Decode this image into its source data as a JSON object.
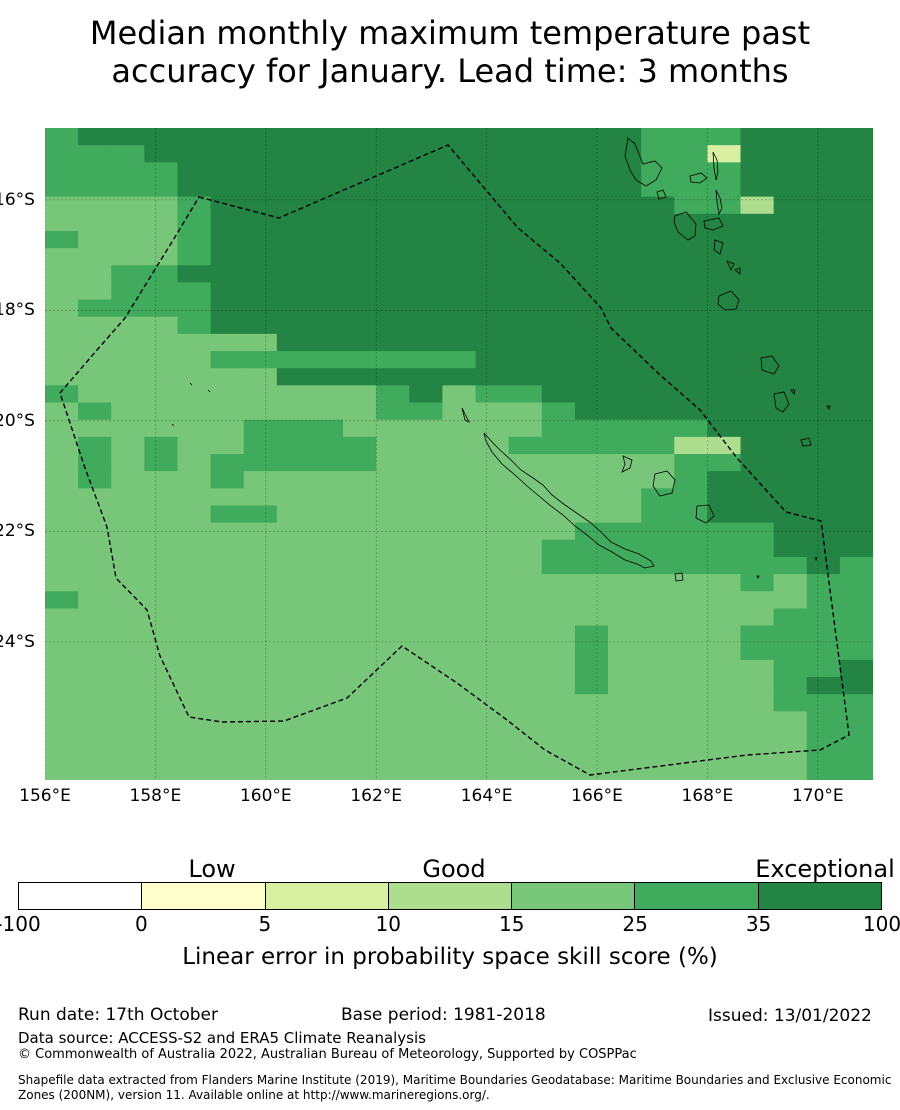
{
  "title": {
    "line1": "Median monthly maximum temperature past",
    "line2": "accuracy for January. Lead time: 3 months"
  },
  "map": {
    "lon_ticks": [
      "156°E",
      "158°E",
      "160°E",
      "162°E",
      "164°E",
      "166°E",
      "168°E",
      "170°E"
    ],
    "lon_values": [
      156,
      158,
      160,
      162,
      164,
      166,
      168,
      170
    ],
    "lat_ticks": [
      "16°S",
      "18°S",
      "20°S",
      "22°S",
      "24°S"
    ],
    "lat_values": [
      -16,
      -18,
      -20,
      -22,
      -24
    ],
    "lon_range": [
      156,
      171
    ],
    "lat_range": [
      -26.5,
      -14.7
    ],
    "gridlines": true,
    "boundary_style": "dashed",
    "color_legend": [
      "#ffffff",
      "#ffffcc",
      "#d9f0a3",
      "#addd8e",
      "#78c679",
      "#41ab5d",
      "#238443"
    ],
    "classes_by_row_top_to_bottom": [
      "5666666666666666665556666",
      "5556666666666666665526666",
      "5555666666666666665556666",
      "5555666666666666665556666",
      "4444566666666666666553666",
      "4444566666666666666666666",
      "5444566666666666666666666",
      "4444566666666666666666666",
      "4455666666666666666666666",
      "4455566666666666666666666",
      "4555566666666666666666666",
      "4444566666666666666666666",
      "4444444666666666666666666",
      "4444455555555666666666666",
      "4444444666666666666666666",
      "5444444444564556666666666",
      "4544444444554445666666666",
      "4444445554444445555566666",
      "4545445555444455555336666",
      "4545455555444444444556666",
      "4544454444444444444566666",
      "4444444444444444445566666",
      "4444455444444444445566666",
      "4444444444444444555555666",
      "4444444444444445555555666",
      "4444444444444445555555565",
      "4444444444444444444445455",
      "5444444444444444444444455",
      "4444444444444444444444555",
      "4444444444444444544445555",
      "4444444444444444544445555",
      "4444444444444444544444556",
      "4444444444444444544444566",
      "4444444444444444444444555",
      "4444444444444444444444455",
      "4444444444444444444444455",
      "4444444444444444444444455",
      "4444444444444444444444455"
    ]
  },
  "colorbar": {
    "categories": [
      "Low",
      "Good",
      "Exceptional"
    ],
    "ticks": [
      "-100",
      "0",
      "5",
      "10",
      "15",
      "25",
      "35",
      "100"
    ],
    "colors": [
      "#ffffff",
      "#ffffcc",
      "#d9f0a3",
      "#addd8e",
      "#78c679",
      "#41ab5d",
      "#238443"
    ],
    "label": "Linear error in probability space skill score (%)"
  },
  "footer": {
    "run_date": "Run date: 17th October",
    "base_period": "Base period: 1981-2018",
    "issued": "Issued: 13/01/2022",
    "data_source": "Data source: ACCESS-S2 and ERA5 Climate Reanalysis",
    "copyright": "© Commonwealth of Australia 2022, Australian Bureau of Meteorology, Supported by COSPPac",
    "shapefile_line1": "Shapefile data extracted from Flanders Marine Institute (2019), Maritime Boundaries Geodatabase: Maritime Boundaries and Exclusive Economic",
    "shapefile_line2": "Zones (200NM), version 11. Available online at http://www.marineregions.org/."
  }
}
